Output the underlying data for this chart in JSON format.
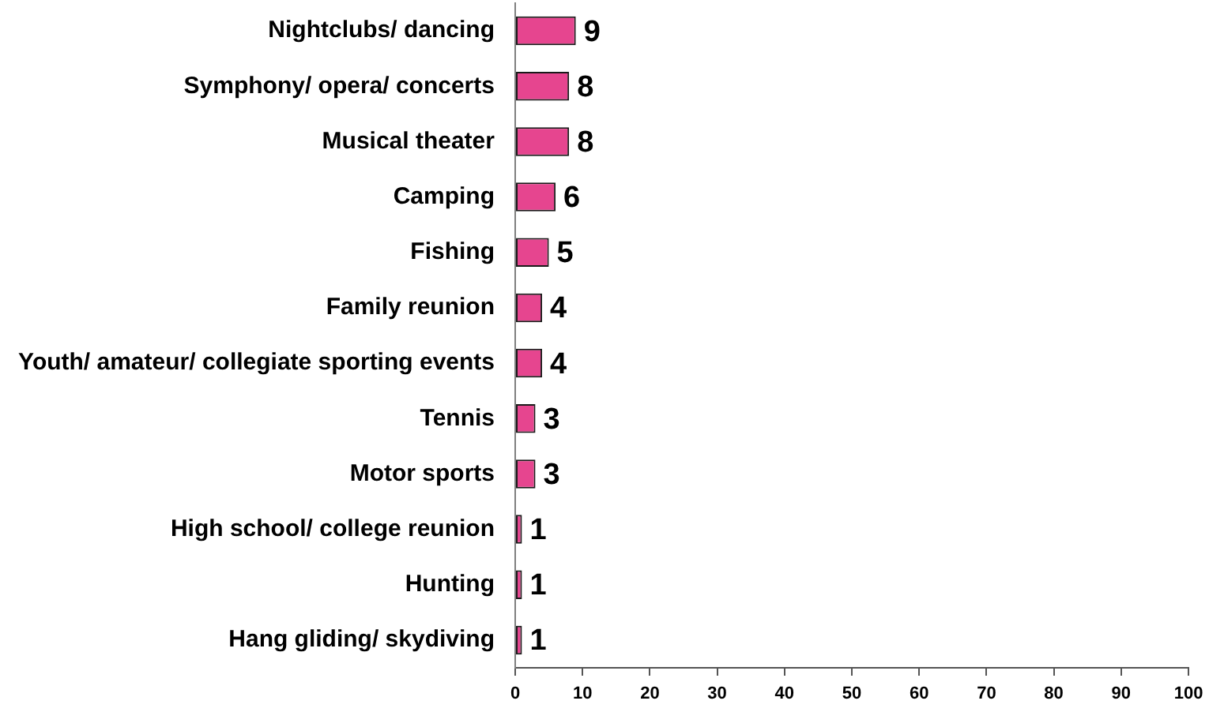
{
  "chart_data": {
    "type": "bar",
    "orientation": "horizontal",
    "categories": [
      "Nightclubs/ dancing",
      "Symphony/ opera/ concerts",
      "Musical theater",
      "Camping",
      "Fishing",
      "Family reunion",
      "Youth/ amateur/ collegiate sporting events",
      "Tennis",
      "Motor sports",
      "High school/ college reunion",
      "Hunting",
      "Hang gliding/ skydiving"
    ],
    "values": [
      9,
      8,
      8,
      6,
      5,
      4,
      4,
      3,
      3,
      1,
      1,
      1
    ],
    "color": "#e6458f",
    "xlim": [
      0,
      100
    ],
    "xticks": [
      0,
      10,
      20,
      30,
      40,
      50,
      60,
      70,
      80,
      90,
      100
    ],
    "data_labels": true,
    "grid": false,
    "legend": false
  }
}
